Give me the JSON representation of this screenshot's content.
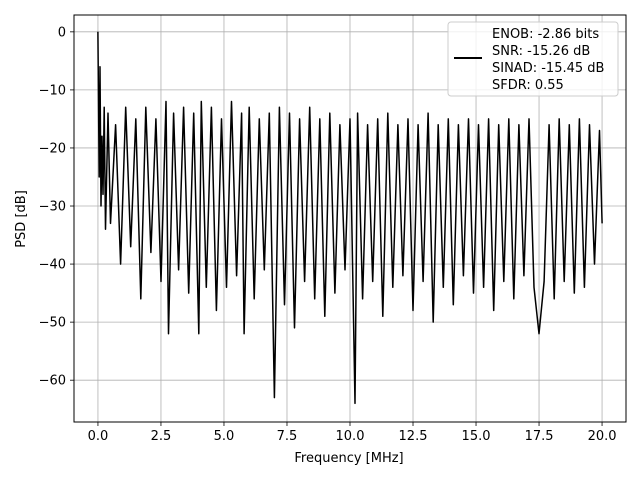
{
  "chart_data": {
    "type": "line",
    "title": "",
    "xlabel": "Frequency [MHz]",
    "ylabel": "PSD [dB]",
    "xlim": [
      -0.95,
      20.95
    ],
    "ylim": [
      -67.2,
      2.9
    ],
    "xticks": [
      0.0,
      2.5,
      5.0,
      7.5,
      10.0,
      12.5,
      15.0,
      17.5,
      20.0
    ],
    "xtick_labels": [
      "0.0",
      "2.5",
      "5.0",
      "7.5",
      "10.0",
      "12.5",
      "15.0",
      "17.5",
      "20.0"
    ],
    "yticks": [
      0,
      -10,
      -20,
      -30,
      -40,
      -50,
      -60
    ],
    "ytick_labels": [
      "0",
      "−10",
      "−20",
      "−30",
      "−40",
      "−50",
      "−60"
    ],
    "grid": true,
    "legend_position": "top-right",
    "series": [
      {
        "name": "",
        "color": "#000000",
        "x": [
          0.0,
          0.02,
          0.05,
          0.08,
          0.12,
          0.16,
          0.2,
          0.25,
          0.3,
          0.4,
          0.5,
          0.7,
          0.9,
          1.1,
          1.3,
          1.5,
          1.7,
          1.9,
          2.1,
          2.3,
          2.5,
          2.7,
          2.8,
          3.0,
          3.2,
          3.4,
          3.6,
          3.8,
          4.0,
          4.1,
          4.3,
          4.5,
          4.7,
          4.9,
          5.1,
          5.3,
          5.5,
          5.7,
          5.8,
          6.0,
          6.2,
          6.4,
          6.6,
          6.8,
          7.0,
          7.2,
          7.4,
          7.6,
          7.8,
          8.0,
          8.2,
          8.4,
          8.6,
          8.8,
          9.0,
          9.2,
          9.4,
          9.6,
          9.8,
          10.0,
          10.2,
          10.3,
          10.5,
          10.7,
          10.9,
          11.1,
          11.3,
          11.5,
          11.7,
          11.9,
          12.1,
          12.3,
          12.5,
          12.7,
          12.9,
          13.1,
          13.3,
          13.5,
          13.7,
          13.9,
          14.1,
          14.3,
          14.5,
          14.7,
          14.9,
          15.1,
          15.3,
          15.5,
          15.7,
          15.9,
          16.1,
          16.3,
          16.5,
          16.7,
          16.9,
          17.1,
          17.3,
          17.5,
          17.7,
          17.9,
          18.1,
          18.3,
          18.5,
          18.7,
          18.9,
          19.1,
          19.3,
          19.5,
          19.7,
          19.9,
          20.0
        ],
        "y": [
          0,
          -10,
          -25,
          -6,
          -30,
          -18,
          -28,
          -13,
          -34,
          -14,
          -33,
          -16,
          -40,
          -13,
          -37,
          -15,
          -46,
          -13,
          -38,
          -15,
          -43,
          -12,
          -52,
          -14,
          -41,
          -13,
          -45,
          -14,
          -52,
          -12,
          -44,
          -13,
          -48,
          -15,
          -44,
          -12,
          -42,
          -14,
          -52,
          -13,
          -46,
          -15,
          -41,
          -14,
          -63,
          -13,
          -47,
          -14,
          -51,
          -15,
          -43,
          -13,
          -46,
          -15,
          -49,
          -14,
          -45,
          -16,
          -41,
          -15,
          -64,
          -14,
          -46,
          -16,
          -43,
          -15,
          -49,
          -14,
          -44,
          -16,
          -42,
          -15,
          -48,
          -16,
          -43,
          -14,
          -50,
          -16,
          -44,
          -15,
          -47,
          -16,
          -42,
          -15,
          -45,
          -16,
          -44,
          -15,
          -48,
          -16,
          -43,
          -15,
          -46,
          -16,
          -42,
          -15,
          -44,
          -52,
          -43,
          -16,
          -46,
          -15,
          -43,
          -16,
          -45,
          -15,
          -44,
          -16,
          -40,
          -17,
          -33
        ]
      }
    ],
    "annotations": [
      {
        "text": "ENOB: -2.86 bits"
      },
      {
        "text": "SNR: -15.26 dB"
      },
      {
        "text": "SINAD: -15.45 dB"
      },
      {
        "text": "SFDR: 0.55"
      }
    ]
  }
}
